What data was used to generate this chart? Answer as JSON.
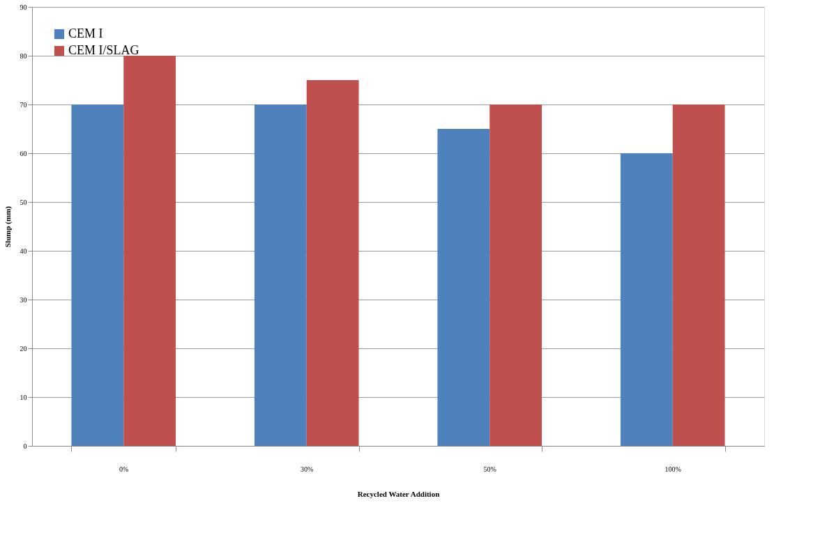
{
  "chart_data": {
    "type": "bar",
    "xlabel": "Recycled Water Addition",
    "ylabel": "Slump (mm)",
    "categories": [
      "0%",
      "30%",
      "50%",
      "100%"
    ],
    "series": [
      {
        "name": "CEM I",
        "color": "#4f81bd",
        "values": [
          70,
          70,
          65,
          60
        ]
      },
      {
        "name": "CEM I/SLAG",
        "color": "#c0504d",
        "values": [
          80,
          75,
          70,
          70
        ]
      }
    ],
    "ylim": [
      0,
      90
    ],
    "yticks": [
      0,
      10,
      20,
      30,
      40,
      50,
      60,
      70,
      80,
      90
    ],
    "grid": "y",
    "legend": "top left"
  }
}
